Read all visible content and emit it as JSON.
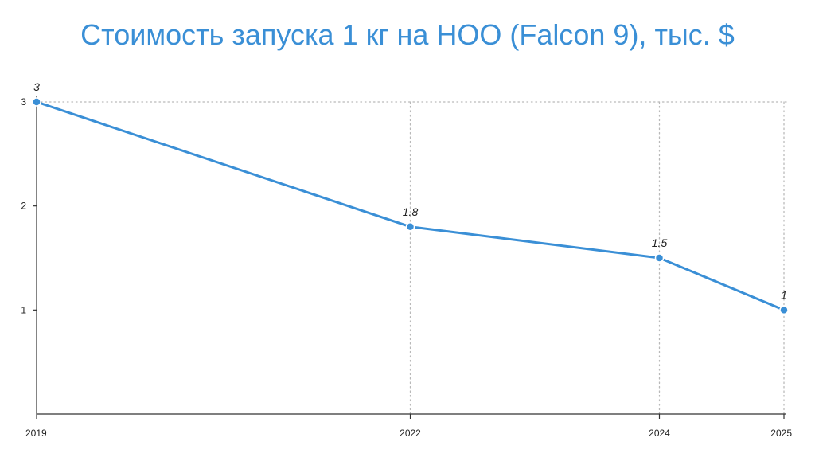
{
  "chart_data": {
    "type": "line",
    "title": "Стоимость запуска 1 кг на НОО (Falcon 9), тыс. $",
    "x": [
      "2019",
      "2022",
      "2024",
      "2025"
    ],
    "series": [
      {
        "values": [
          3,
          1.8,
          1.5,
          1
        ],
        "data_labels": [
          "3",
          "1.8",
          "1.5",
          "1"
        ]
      }
    ],
    "xlabel": "",
    "ylabel": "",
    "ylim": [
      0,
      3
    ],
    "yticks": [
      1,
      2,
      3
    ],
    "grid": true,
    "legend": "none",
    "colors": {
      "series": "#3a8fd6",
      "title": "#3a8fd6"
    }
  }
}
